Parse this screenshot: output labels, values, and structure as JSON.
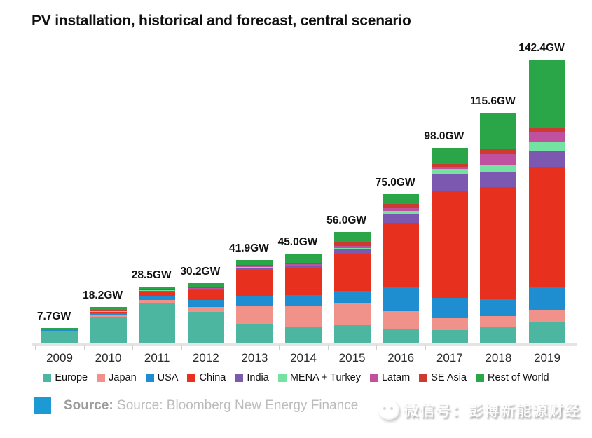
{
  "title": "PV installation, historical and forecast, central scenario",
  "chart_data": {
    "type": "bar",
    "stacked": true,
    "title": "PV installation, historical and forecast, central scenario",
    "xlabel": "",
    "ylabel": "GW",
    "unit": "GW",
    "grid": false,
    "legend_position": "bottom",
    "categories": [
      "2009",
      "2010",
      "2011",
      "2012",
      "2013",
      "2014",
      "2015",
      "2016",
      "2017",
      "2018",
      "2019"
    ],
    "totals": [
      7.7,
      18.2,
      28.5,
      30.2,
      41.9,
      45.0,
      56.0,
      75.0,
      98.0,
      115.6,
      142.4
    ],
    "total_labels": [
      "7.7GW",
      "18.2GW",
      "28.5GW",
      "30.2GW",
      "41.9GW",
      "45.0GW",
      "56.0GW",
      "75.0GW",
      "98.0GW",
      "115.6GW",
      "142.4GW"
    ],
    "ylim": [
      0,
      142.4
    ],
    "series": [
      {
        "name": "Europe",
        "color": "#4db6a1",
        "values": [
          6.0,
          13.5,
          20.5,
          16.0,
          9.8,
          8.1,
          9.0,
          7.5,
          6.7,
          8.1,
          10.4
        ]
      },
      {
        "name": "Japan",
        "color": "#f0928a",
        "values": [
          0.5,
          1.0,
          1.3,
          2.3,
          8.8,
          10.5,
          11.0,
          8.6,
          5.9,
          5.6,
          6.5
        ]
      },
      {
        "name": "USA",
        "color": "#1f8ed1",
        "values": [
          0.5,
          0.9,
          1.9,
          3.4,
          5.3,
          5.5,
          6.5,
          12.5,
          10.2,
          8.4,
          11.7
        ]
      },
      {
        "name": "China",
        "color": "#e8301f",
        "values": [
          0.1,
          0.5,
          2.5,
          5.0,
          13.0,
          13.5,
          18.5,
          32.0,
          53.5,
          56.3,
          59.5
        ]
      },
      {
        "name": "India",
        "color": "#7d58b0",
        "values": [
          0.0,
          0.1,
          0.3,
          0.5,
          1.0,
          1.0,
          2.2,
          4.5,
          8.8,
          7.6,
          8.3
        ]
      },
      {
        "name": "MENA + Turkey",
        "color": "#74e3a2",
        "values": [
          0.1,
          0.2,
          0.1,
          0.2,
          0.3,
          0.4,
          0.7,
          1.2,
          2.4,
          3.5,
          5.0
        ]
      },
      {
        "name": "Latam",
        "color": "#bf519f",
        "values": [
          0.0,
          0.1,
          0.1,
          0.3,
          0.4,
          0.6,
          1.0,
          1.5,
          1.1,
          5.5,
          4.6
        ]
      },
      {
        "name": "SE Asia",
        "color": "#cd3a31",
        "values": [
          0.1,
          0.4,
          0.3,
          0.5,
          0.8,
          0.9,
          1.6,
          2.2,
          1.6,
          2.3,
          2.4
        ]
      },
      {
        "name": "Rest of World",
        "color": "#2aa648",
        "values": [
          0.4,
          1.5,
          1.5,
          2.0,
          2.5,
          4.5,
          5.5,
          5.0,
          7.8,
          18.3,
          34.0
        ]
      }
    ]
  },
  "footer": {
    "source_label": "Source:",
    "source_text": "Source: Bloomberg New Energy Finance"
  },
  "watermark": {
    "icon": "wechat-face-icon",
    "text": "微信号：彭博新能源财经"
  },
  "colors": {
    "accent_blue": "#1d9ad6",
    "axis_gray": "#e4e4e4"
  }
}
